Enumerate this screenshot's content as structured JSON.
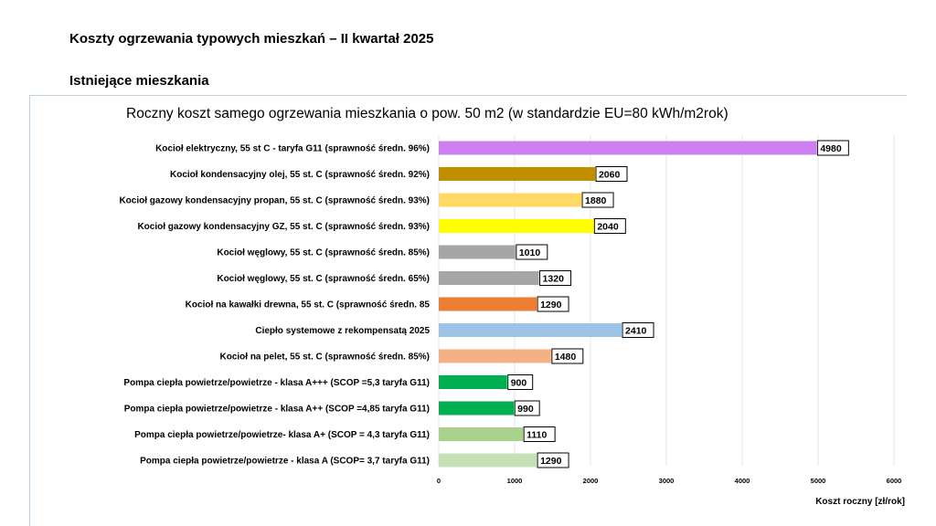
{
  "slide": {
    "title": "Koszty ogrzewania typowych mieszkań – II kwartał 2025",
    "subtitle": "Istniejące mieszkania"
  },
  "chart_data": {
    "type": "bar",
    "orientation": "horizontal",
    "title": "Roczny koszt samego ogrzewania mieszkania o pow. 50 m2 (w standardzie  EU=80 kWh/m2rok)",
    "xlabel": "Koszt roczny [zł/rok]",
    "ylabel": "",
    "xlim": [
      0,
      6000
    ],
    "xticks": [
      0,
      1000,
      2000,
      3000,
      4000,
      5000,
      6000
    ],
    "grid": true,
    "legend": "none",
    "categories": [
      "Kocioł elektryczny, 55 st C -  taryfa G11 (sprawność średn. 96%)",
      "Kocioł kondensacyjny olej, 55 st. C (sprawność średn. 92%)",
      "Kocioł gazowy kondensacyjny propan, 55 st. C (sprawność średn. 93%)",
      "Kocioł gazowy kondensacyjny GZ, 55 st. C (sprawność średn. 93%)",
      "Kocioł węglowy,  55 st. C (sprawność średn. 85%)",
      "Kocioł węglowy, 55 st. C (sprawność średn. 65%)",
      "Kocioł na kawałki drewna, 55 st. C (sprawność średn. 85",
      "Ciepło systemowe z rekompensatą 2025",
      "Kocioł na pelet, 55 st. C (sprawność średn. 85%)",
      "Pompa ciepła powietrze/powietrze -  klasa A+++ (SCOP =5,3 taryfa G11)",
      "Pompa ciepła powietrze/powietrze - klasa A++ (SCOP =4,85 taryfa G11)",
      "Pompa ciepła powietrze/powietrze-  klasa A+ (SCOP = 4,3 taryfa G11)",
      "Pompa ciepła powietrze/powietrze - klasa A (SCOP= 3,7 taryfa G11)"
    ],
    "values": [
      4980,
      2060,
      1880,
      2040,
      1010,
      1320,
      1290,
      2410,
      1480,
      900,
      990,
      1110,
      1290
    ],
    "colors": [
      "#cc80f0",
      "#bf8f00",
      "#ffd966",
      "#ffff00",
      "#a6a6a6",
      "#a6a6a6",
      "#ed7d31",
      "#9dc3e6",
      "#f4b183",
      "#00b050",
      "#00b050",
      "#a9d18e",
      "#c5e0b4"
    ]
  }
}
